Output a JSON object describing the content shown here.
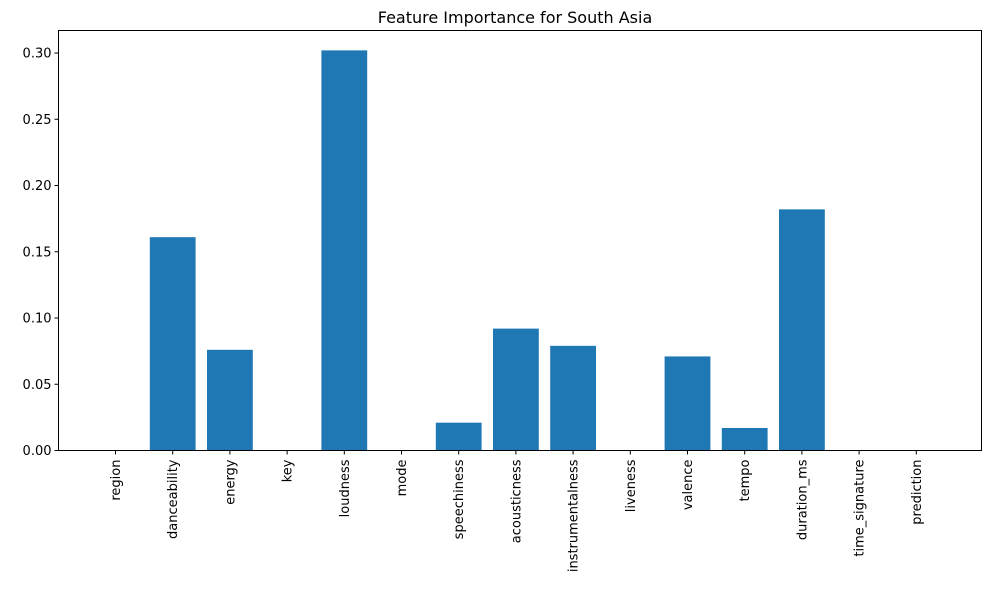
{
  "chart_data": {
    "type": "bar",
    "title": "Feature Importance for South Asia",
    "xlabel": "",
    "ylabel": "",
    "categories": [
      "region",
      "danceability",
      "energy",
      "key",
      "loudness",
      "mode",
      "speechiness",
      "acousticness",
      "instrumentalness",
      "liveness",
      "valence",
      "tempo",
      "duration_ms",
      "time_signature",
      "prediction"
    ],
    "values": [
      0.0,
      0.161,
      0.076,
      0.0,
      0.302,
      0.0,
      0.021,
      0.092,
      0.079,
      0.0,
      0.071,
      0.017,
      0.182,
      0.0,
      0.0
    ],
    "ylim": [
      0,
      0.317
    ],
    "yticks": [
      0.0,
      0.05,
      0.1,
      0.15,
      0.2,
      0.25,
      0.3
    ],
    "ytick_labels": [
      "0.00",
      "0.05",
      "0.10",
      "0.15",
      "0.20",
      "0.25",
      "0.30"
    ],
    "bar_color": "#1f77b4",
    "grid": false,
    "legend": false
  }
}
